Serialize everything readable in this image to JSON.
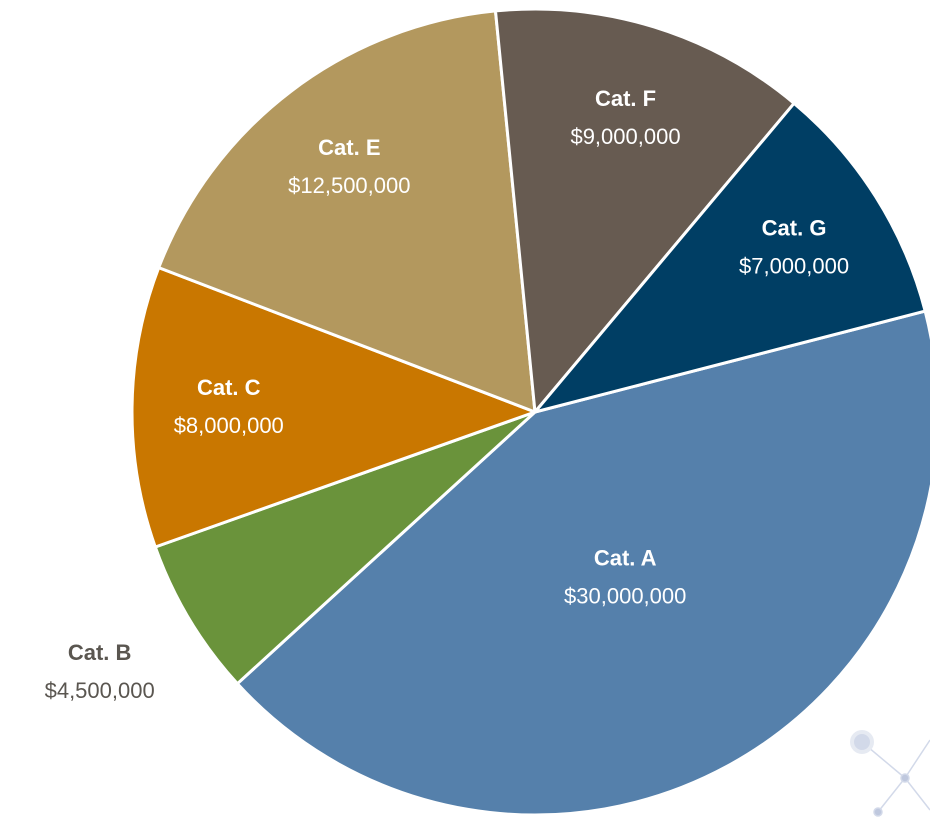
{
  "chart_data": {
    "type": "pie",
    "categories": [
      "Cat. A",
      "Cat. B",
      "Cat. C",
      "Cat. E",
      "Cat. F",
      "Cat. G"
    ],
    "values": [
      30000000,
      4500000,
      8000000,
      12500000,
      9000000,
      7000000
    ],
    "value_labels": [
      "$30,000,000",
      "$4,500,000",
      "$8,000,000",
      "$12,500,000",
      "$9,000,000",
      "$7,000,000"
    ],
    "colors": [
      "#5580ab",
      "#6a933b",
      "#c97700",
      "#b3985e",
      "#675b51",
      "#003e64"
    ]
  }
}
